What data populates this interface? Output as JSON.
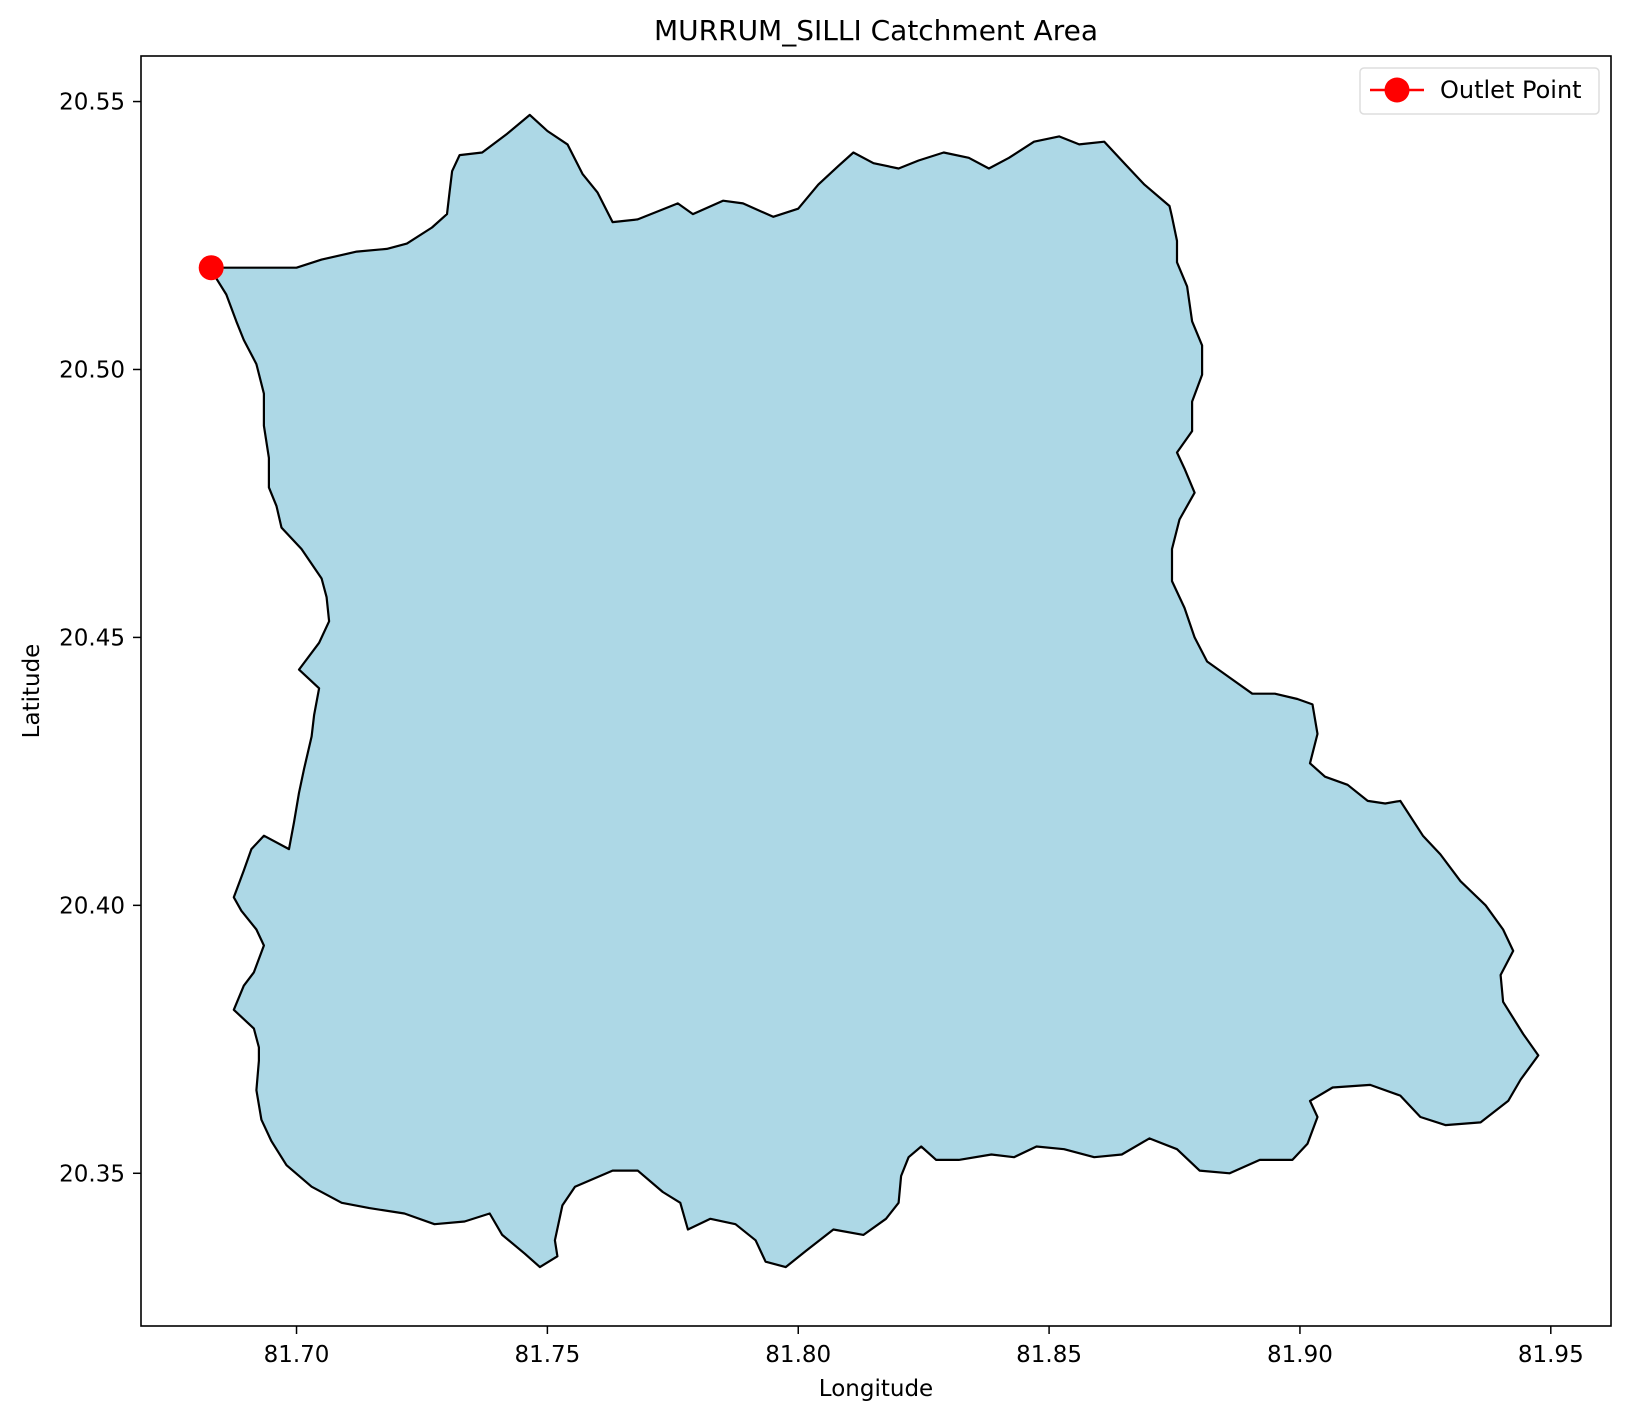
{
  "chart_data": {
    "type": "map",
    "title": "MURRUM_SILLI Catchment Area",
    "xlabel": "Longitude",
    "ylabel": "Latitude",
    "xlim": [
      81.669,
      81.962
    ],
    "ylim": [
      20.3215,
      20.5585
    ],
    "x_ticks": [
      81.7,
      81.75,
      81.8,
      81.85,
      81.9,
      81.95
    ],
    "x_tick_labels": [
      "81.70",
      "81.75",
      "81.80",
      "81.85",
      "81.90",
      "81.95"
    ],
    "y_ticks": [
      20.35,
      20.4,
      20.45,
      20.5,
      20.55
    ],
    "y_tick_labels": [
      "20.35",
      "20.40",
      "20.45",
      "20.50",
      "20.55"
    ],
    "grid": false,
    "legend_position": "top-right",
    "colors": {
      "catchment_fill": "#add8e6",
      "boundary": "#000000",
      "outlet": "#ff0000"
    },
    "catchment_boundary": [
      [
        81.683,
        20.519
      ],
      [
        81.7,
        20.519
      ],
      [
        81.705,
        20.5205
      ],
      [
        81.712,
        20.522
      ],
      [
        81.718,
        20.5225
      ],
      [
        81.722,
        20.5235
      ],
      [
        81.727,
        20.5265
      ],
      [
        81.73,
        20.529
      ],
      [
        81.7305,
        20.533
      ],
      [
        81.731,
        20.537
      ],
      [
        81.7325,
        20.54
      ],
      [
        81.737,
        20.5405
      ],
      [
        81.742,
        20.544
      ],
      [
        81.7465,
        20.5475
      ],
      [
        81.75,
        20.5445
      ],
      [
        81.754,
        20.542
      ],
      [
        81.757,
        20.5365
      ],
      [
        81.76,
        20.533
      ],
      [
        81.763,
        20.5275
      ],
      [
        81.768,
        20.528
      ],
      [
        81.772,
        20.5295
      ],
      [
        81.776,
        20.531
      ],
      [
        81.779,
        20.529
      ],
      [
        81.785,
        20.5315
      ],
      [
        81.789,
        20.531
      ],
      [
        81.795,
        20.5285
      ],
      [
        81.8,
        20.53
      ],
      [
        81.804,
        20.5345
      ],
      [
        81.808,
        20.538
      ],
      [
        81.811,
        20.5405
      ],
      [
        81.815,
        20.5385
      ],
      [
        81.82,
        20.5375
      ],
      [
        81.824,
        20.539
      ],
      [
        81.829,
        20.5405
      ],
      [
        81.834,
        20.5395
      ],
      [
        81.838,
        20.5375
      ],
      [
        81.842,
        20.5395
      ],
      [
        81.847,
        20.5425
      ],
      [
        81.852,
        20.5435
      ],
      [
        81.856,
        20.542
      ],
      [
        81.861,
        20.5425
      ],
      [
        81.865,
        20.5385
      ],
      [
        81.869,
        20.5345
      ],
      [
        81.874,
        20.5305
      ],
      [
        81.8745,
        20.5285
      ],
      [
        81.8755,
        20.524
      ],
      [
        81.8755,
        20.52
      ],
      [
        81.8775,
        20.5155
      ],
      [
        81.8785,
        20.509
      ],
      [
        81.8805,
        20.5045
      ],
      [
        81.8805,
        20.499
      ],
      [
        81.8785,
        20.494
      ],
      [
        81.8785,
        20.4885
      ],
      [
        81.8755,
        20.4845
      ],
      [
        81.877,
        20.4815
      ],
      [
        81.879,
        20.477
      ],
      [
        81.876,
        20.472
      ],
      [
        81.8745,
        20.4665
      ],
      [
        81.8745,
        20.4605
      ],
      [
        81.877,
        20.4555
      ],
      [
        81.879,
        20.45
      ],
      [
        81.8815,
        20.4455
      ],
      [
        81.886,
        20.4425
      ],
      [
        81.8905,
        20.4395
      ],
      [
        81.895,
        20.4395
      ],
      [
        81.8995,
        20.4385
      ],
      [
        81.9025,
        20.4375
      ],
      [
        81.9035,
        20.432
      ],
      [
        81.902,
        20.4265
      ],
      [
        81.905,
        20.424
      ],
      [
        81.9095,
        20.4225
      ],
      [
        81.9135,
        20.4195
      ],
      [
        81.917,
        20.419
      ],
      [
        81.92,
        20.4195
      ],
      [
        81.9245,
        20.413
      ],
      [
        81.928,
        20.4095
      ],
      [
        81.932,
        20.4045
      ],
      [
        81.937,
        20.4
      ],
      [
        81.9405,
        20.3955
      ],
      [
        81.9425,
        20.3915
      ],
      [
        81.94,
        20.387
      ],
      [
        81.9405,
        20.382
      ],
      [
        81.9445,
        20.376
      ],
      [
        81.9475,
        20.372
      ],
      [
        81.944,
        20.3675
      ],
      [
        81.9415,
        20.3635
      ],
      [
        81.936,
        20.3595
      ],
      [
        81.929,
        20.359
      ],
      [
        81.924,
        20.3605
      ],
      [
        81.92,
        20.3645
      ],
      [
        81.914,
        20.3665
      ],
      [
        81.9065,
        20.366
      ],
      [
        81.902,
        20.3635
      ],
      [
        81.9035,
        20.3605
      ],
      [
        81.9015,
        20.3555
      ],
      [
        81.8985,
        20.3525
      ],
      [
        81.892,
        20.3525
      ],
      [
        81.886,
        20.35
      ],
      [
        81.88,
        20.3505
      ],
      [
        81.8755,
        20.3545
      ],
      [
        81.87,
        20.3565
      ],
      [
        81.8645,
        20.3535
      ],
      [
        81.859,
        20.353
      ],
      [
        81.853,
        20.3545
      ],
      [
        81.8475,
        20.355
      ],
      [
        81.843,
        20.353
      ],
      [
        81.8385,
        20.3535
      ],
      [
        81.832,
        20.3525
      ],
      [
        81.8275,
        20.3525
      ],
      [
        81.8245,
        20.355
      ],
      [
        81.822,
        20.353
      ],
      [
        81.8205,
        20.3495
      ],
      [
        81.82,
        20.3445
      ],
      [
        81.8175,
        20.3415
      ],
      [
        81.813,
        20.3385
      ],
      [
        81.807,
        20.3395
      ],
      [
        81.8015,
        20.3355
      ],
      [
        81.7975,
        20.3325
      ],
      [
        81.7935,
        20.3335
      ],
      [
        81.7915,
        20.3375
      ],
      [
        81.7875,
        20.3405
      ],
      [
        81.7825,
        20.3415
      ],
      [
        81.778,
        20.3395
      ],
      [
        81.7765,
        20.3445
      ],
      [
        81.773,
        20.3465
      ],
      [
        81.768,
        20.3505
      ],
      [
        81.763,
        20.3505
      ],
      [
        81.7555,
        20.3475
      ],
      [
        81.753,
        20.344
      ],
      [
        81.7515,
        20.3375
      ],
      [
        81.752,
        20.3345
      ],
      [
        81.7485,
        20.3325
      ],
      [
        81.7455,
        20.335
      ],
      [
        81.741,
        20.3385
      ],
      [
        81.7385,
        20.3425
      ],
      [
        81.7335,
        20.341
      ],
      [
        81.7275,
        20.3405
      ],
      [
        81.7215,
        20.3425
      ],
      [
        81.7145,
        20.3435
      ],
      [
        81.709,
        20.3445
      ],
      [
        81.703,
        20.3475
      ],
      [
        81.698,
        20.3515
      ],
      [
        81.695,
        20.356
      ],
      [
        81.693,
        20.36
      ],
      [
        81.692,
        20.3655
      ],
      [
        81.6925,
        20.371
      ],
      [
        81.6925,
        20.3735
      ],
      [
        81.6915,
        20.377
      ],
      [
        81.6875,
        20.3805
      ],
      [
        81.6895,
        20.385
      ],
      [
        81.6915,
        20.3875
      ],
      [
        81.6935,
        20.3925
      ],
      [
        81.692,
        20.3955
      ],
      [
        81.689,
        20.399
      ],
      [
        81.6875,
        20.4015
      ],
      [
        81.6895,
        20.4065
      ],
      [
        81.691,
        20.4105
      ],
      [
        81.6935,
        20.413
      ],
      [
        81.6985,
        20.4105
      ],
      [
        81.6995,
        20.4155
      ],
      [
        81.7005,
        20.421
      ],
      [
        81.7015,
        20.4255
      ],
      [
        81.703,
        20.4315
      ],
      [
        81.7035,
        20.4355
      ],
      [
        81.7045,
        20.4405
      ],
      [
        81.7005,
        20.444
      ],
      [
        81.7045,
        20.449
      ],
      [
        81.7065,
        20.453
      ],
      [
        81.706,
        20.4575
      ],
      [
        81.705,
        20.461
      ],
      [
        81.701,
        20.4665
      ],
      [
        81.697,
        20.4705
      ],
      [
        81.696,
        20.4745
      ],
      [
        81.6945,
        20.478
      ],
      [
        81.6945,
        20.4835
      ],
      [
        81.6935,
        20.4895
      ],
      [
        81.6935,
        20.4955
      ],
      [
        81.692,
        20.501
      ],
      [
        81.6895,
        20.5055
      ],
      [
        81.688,
        20.509
      ],
      [
        81.686,
        20.514
      ],
      [
        81.684,
        20.517
      ],
      [
        81.683,
        20.519
      ]
    ],
    "outlet_point": {
      "lon": 81.683,
      "lat": 20.519
    },
    "legend": [
      {
        "label": "Outlet Point",
        "marker": "circle",
        "color": "#ff0000"
      }
    ]
  }
}
